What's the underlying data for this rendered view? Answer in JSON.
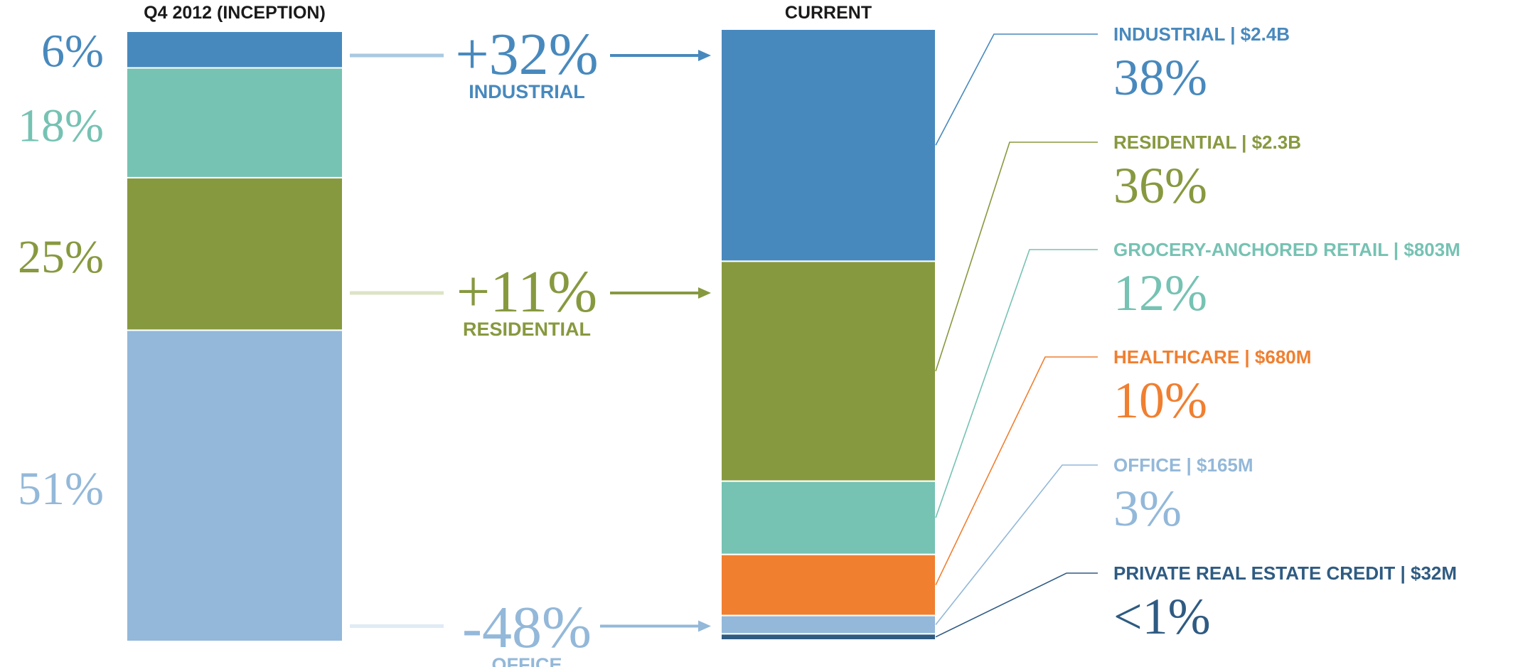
{
  "chart_data": {
    "type": "bar",
    "stacked": true,
    "percent": true,
    "categories": [
      "Q4 2012 (INCEPTION)",
      "CURRENT"
    ],
    "series": [
      {
        "name": "INDUSTRIAL",
        "color": "#4889bd",
        "values": [
          6,
          38
        ],
        "value_labels": [
          "6%",
          "38%"
        ],
        "amount_label": "INDUSTRIAL | $2.4B"
      },
      {
        "name": "RESIDENTIAL",
        "color": "#87993f",
        "values": [
          25,
          36
        ],
        "value_labels": [
          "25%",
          "36%"
        ],
        "amount_label": "RESIDENTIAL | $2.3B"
      },
      {
        "name": "GROCERY-ANCHORED RETAIL",
        "color": "#76c2b3",
        "values": [
          18,
          12
        ],
        "value_labels": [
          "18%",
          "12%"
        ],
        "amount_label": "GROCERY-ANCHORED RETAIL | $803M"
      },
      {
        "name": "HEALTHCARE",
        "color": "#f07f30",
        "values": [
          0,
          10
        ],
        "value_labels": [
          "",
          "10%"
        ],
        "amount_label": "HEALTHCARE | $680M"
      },
      {
        "name": "OFFICE",
        "color": "#93b8d9",
        "values": [
          51,
          3
        ],
        "value_labels": [
          "51%",
          "3%"
        ],
        "amount_label": "OFFICE | $165M"
      },
      {
        "name": "PRIVATE REAL ESTATE CREDIT",
        "color": "#2f5b82",
        "values": [
          0,
          1
        ],
        "value_labels": [
          "",
          "<1%"
        ],
        "amount_label": "PRIVATE REAL ESTATE CREDIT | $32M"
      }
    ],
    "changes": [
      {
        "series": "INDUSTRIAL",
        "value": "+32%",
        "label": "INDUSTRIAL",
        "color": "#4889bd",
        "fade": "#aac9e2"
      },
      {
        "series": "RESIDENTIAL",
        "value": "+11%",
        "label": "RESIDENTIAL",
        "color": "#87993f",
        "fade": "#dde4c5"
      },
      {
        "series": "OFFICE",
        "value": "-48%",
        "label": "OFFICE",
        "color": "#93b8d9",
        "fade": "#e0ebf5"
      }
    ]
  }
}
